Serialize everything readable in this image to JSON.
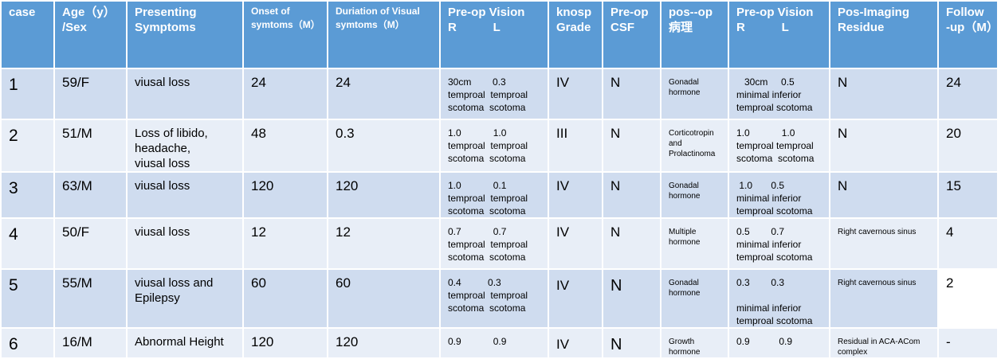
{
  "table": {
    "headers": {
      "case": "case",
      "age_1": "Age（y）",
      "age_2": "/Sex",
      "symptoms_1": "Presenting",
      "symptoms_2": "Symptoms",
      "onset_1": "Onset of",
      "onset_2": "symtoms（M）",
      "duration_1": "Duriation of Visual",
      "duration_2": "symtoms（M）",
      "preop_vision_1": "Pre-op Vision",
      "preop_vision_2": "R           L",
      "knosp_1": "knosp",
      "knosp_2": "Grade",
      "csf_1": "Pre-op",
      "csf_2": "CSF",
      "pathology_1": "pos--op",
      "pathology_2": "病理",
      "postop_vision_1": "Pre-op Vision",
      "postop_vision_2": "R           L",
      "residue_1": "Pos-Imaging",
      "residue_2": "Residue",
      "followup_1": "Follow",
      "followup_2": "-up（M）"
    },
    "rows": [
      {
        "case": "1",
        "age_sex": "59/F",
        "symptoms": [
          "viusal loss"
        ],
        "onset": "24",
        "duration": "24",
        "preop_vision": [
          "30cm        0.3",
          "temproal  temproal",
          "scotoma  scotoma"
        ],
        "knosp": "IV",
        "csf": "N",
        "pathology": [
          "Gonadal",
          "hormone"
        ],
        "postop_vision": [
          "   30cm     0.5",
          "minimal inferior",
          "temproal scotoma"
        ],
        "residue": "N",
        "followup": "24"
      },
      {
        "case": "2",
        "age_sex": "51/M",
        "symptoms": [
          "Loss of libido,",
          "headache,",
          "viusal loss"
        ],
        "onset": "48",
        "duration": "0.3",
        "preop_vision": [
          "1.0            1.0",
          "temproal  temproal",
          "scotoma  scotoma"
        ],
        "knosp": "III",
        "csf": "N",
        "pathology": [
          "Corticotropin",
          "and",
          "Prolactinoma"
        ],
        "postop_vision": [
          "1.0            1.0",
          "temproal temproal",
          "scotoma  scotoma"
        ],
        "residue": "N",
        "followup": "20"
      },
      {
        "case": "3",
        "age_sex": "63/M",
        "symptoms": [
          "viusal loss"
        ],
        "onset": "120",
        "duration": "120",
        "preop_vision": [
          "1.0            0.1",
          "temproal  temproal",
          "scotoma  scotoma"
        ],
        "knosp": "IV",
        "csf": "N",
        "pathology": [
          "Gonadal",
          "hormone"
        ],
        "postop_vision": [
          " 1.0       0.5",
          "minimal inferior",
          "temproal scotoma"
        ],
        "residue": "N",
        "followup": "15"
      },
      {
        "case": "4",
        "age_sex": "50/F",
        "symptoms": [
          "viusal loss"
        ],
        "onset": "12",
        "duration": "12",
        "preop_vision": [
          "0.7            0.7",
          "temproal  temproal",
          "scotoma  scotoma"
        ],
        "knosp": "IV",
        "csf": "N",
        "pathology": [
          "Multiple",
          "hormone"
        ],
        "postop_vision": [
          "0.5        0.7",
          "minimal inferior",
          "temproal scotoma"
        ],
        "residue": "Right cavernous sinus",
        "followup": "4"
      },
      {
        "case": "5",
        "age_sex": "55/M",
        "symptoms": [
          "viusal loss and",
          "Epilepsy"
        ],
        "onset": "60",
        "duration": "60",
        "preop_vision": [
          "0.4          0.3",
          "temproal  temproal",
          "scotoma  scotoma"
        ],
        "knosp": "IV",
        "csf": "N",
        "pathology": [
          "Gonadal",
          "hormone"
        ],
        "postop_vision": [
          "0.3        0.3",
          "",
          "minimal inferior",
          "temproal scotoma"
        ],
        "residue": "Right cavernous sinus",
        "followup": "2"
      },
      {
        "case": "6",
        "age_sex": "16/M",
        "symptoms": [
          "Abnormal Height"
        ],
        "onset": "120",
        "duration": "120",
        "preop_vision": [
          "0.9            0.9"
        ],
        "knosp": "IV",
        "csf": "N",
        "pathology": [
          "Growth",
          "hormone"
        ],
        "postop_vision": [
          "0.9           0.9"
        ],
        "residue": "Residual in ACA-ACom complex",
        "followup": "-"
      }
    ]
  },
  "colors": {
    "header_bg": "#5b9bd5",
    "row_odd": "#cfdcef",
    "row_even": "#e8eef7"
  }
}
